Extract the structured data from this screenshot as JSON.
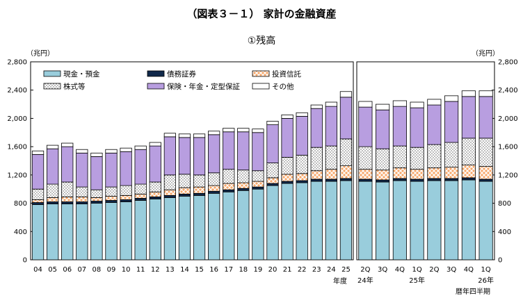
{
  "chart_data": {
    "type": "bar",
    "stacked": true,
    "title": "（図表３－１） 家計の金融資産",
    "subtitle": "①残高",
    "unit_left": "（兆円）",
    "unit_right": "（兆円）",
    "ylim": [
      0,
      2800
    ],
    "yticks": [
      "0",
      "400",
      "800",
      "1,200",
      "1,600",
      "2,000",
      "2,400",
      "2,800"
    ],
    "ytick_values": [
      0,
      400,
      800,
      1200,
      1600,
      2000,
      2400,
      2800
    ],
    "legend_placement": "top-left",
    "series_order": [
      "cash",
      "debt",
      "trust",
      "stock",
      "insurance",
      "other"
    ],
    "series": [
      {
        "key": "cash",
        "name": "現金・預金",
        "color": "#99cddc",
        "pattern": "none"
      },
      {
        "key": "debt",
        "name": "債務証券",
        "color": "#10284a",
        "pattern": "none"
      },
      {
        "key": "trust",
        "name": "投資信託",
        "color": "#f5a56a",
        "pattern": "cross"
      },
      {
        "key": "stock",
        "name": "株式等",
        "color": "#ffffff",
        "pattern": "dots"
      },
      {
        "key": "insurance",
        "name": "保険・年金・定型保証",
        "color": "#b89ee0",
        "pattern": "none"
      },
      {
        "key": "other",
        "name": "その他",
        "color": "#ffffff",
        "pattern": "none"
      }
    ],
    "annual": {
      "categories": [
        "04",
        "05",
        "06",
        "07",
        "08",
        "09",
        "10",
        "11",
        "12",
        "13",
        "14",
        "15",
        "16",
        "17",
        "18",
        "19",
        "20",
        "21",
        "22",
        "23",
        "24",
        "25"
      ],
      "axis_label": "年度",
      "values": {
        "cash": [
          780,
          790,
          790,
          790,
          800,
          810,
          820,
          840,
          860,
          880,
          900,
          910,
          940,
          960,
          980,
          1000,
          1050,
          1080,
          1090,
          1110,
          1110,
          1120
        ],
        "debt": [
          30,
          30,
          30,
          30,
          30,
          30,
          30,
          30,
          30,
          30,
          30,
          30,
          30,
          30,
          30,
          30,
          30,
          30,
          30,
          30,
          30,
          30
        ],
        "trust": [
          40,
          60,
          70,
          70,
          50,
          60,
          60,
          60,
          70,
          80,
          90,
          90,
          80,
          90,
          80,
          80,
          80,
          100,
          100,
          120,
          140,
          180
        ],
        "stock": [
          150,
          190,
          210,
          140,
          110,
          130,
          140,
          140,
          140,
          210,
          190,
          170,
          180,
          200,
          180,
          150,
          210,
          240,
          260,
          330,
          330,
          380
        ],
        "insurance": [
          490,
          500,
          500,
          480,
          470,
          480,
          480,
          490,
          510,
          540,
          520,
          530,
          540,
          530,
          540,
          540,
          540,
          550,
          550,
          550,
          560,
          590
        ],
        "other": [
          50,
          50,
          50,
          50,
          50,
          50,
          50,
          50,
          50,
          50,
          50,
          50,
          50,
          50,
          50,
          50,
          50,
          50,
          50,
          50,
          60,
          80
        ]
      }
    },
    "quarterly": {
      "categories": [
        "2Q",
        "3Q",
        "4Q",
        "1Q",
        "2Q",
        "3Q",
        "4Q",
        "1Q"
      ],
      "year_labels": [
        {
          "text": "24年",
          "index": 0
        },
        {
          "text": "25年",
          "index": 3
        },
        {
          "text": "26年",
          "index": 7
        }
      ],
      "axis_label": "暦年四半期",
      "values": {
        "cash": [
          1110,
          1100,
          1120,
          1110,
          1120,
          1120,
          1130,
          1110
        ],
        "debt": [
          30,
          30,
          30,
          30,
          30,
          30,
          30,
          30
        ],
        "trust": [
          140,
          140,
          150,
          140,
          150,
          160,
          180,
          180
        ],
        "stock": [
          320,
          300,
          310,
          310,
          330,
          350,
          380,
          400
        ],
        "insurance": [
          560,
          550,
          560,
          560,
          560,
          580,
          590,
          590
        ],
        "other": [
          80,
          80,
          80,
          80,
          80,
          80,
          80,
          80
        ]
      }
    }
  }
}
